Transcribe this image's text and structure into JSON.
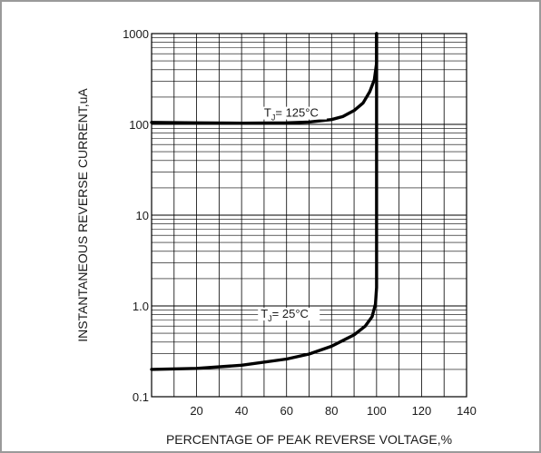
{
  "chart_data": {
    "type": "line",
    "title": "",
    "xlabel": "PERCENTAGE OF PEAK REVERSE VOLTAGE,%",
    "ylabel": "INSTANTANEOUS REVERSE CURRENT,uA",
    "xlim": [
      0,
      140
    ],
    "ylim": [
      0.1,
      1000
    ],
    "yscale": "log",
    "grid": true,
    "x_ticks": [
      20,
      40,
      60,
      80,
      100,
      120,
      140
    ],
    "x_tick_labels": [
      "20",
      "40",
      "60",
      "80",
      "100",
      "120",
      "140"
    ],
    "y_ticks": [
      0.1,
      1,
      10,
      100,
      1000
    ],
    "y_tick_labels": [
      "0.1",
      "1.0",
      "10",
      "100",
      "1000"
    ],
    "series": [
      {
        "label_main": "T",
        "label_sub": "J",
        "label_rest": "= 125°C",
        "x": [
          0,
          20,
          40,
          60,
          70,
          80,
          85,
          90,
          94,
          97,
          99,
          100,
          100
        ],
        "y": [
          105,
          104,
          103,
          104,
          106,
          113,
          122,
          142,
          172,
          230,
          310,
          470,
          1000
        ]
      },
      {
        "label_main": "T",
        "label_sub": "J",
        "label_rest": "= 25°C",
        "x": [
          0,
          20,
          40,
          60,
          70,
          80,
          90,
          95,
          98,
          99.5,
          100,
          100
        ],
        "y": [
          0.2,
          0.205,
          0.222,
          0.26,
          0.295,
          0.36,
          0.48,
          0.6,
          0.76,
          1.05,
          1.6,
          1000
        ]
      }
    ]
  }
}
